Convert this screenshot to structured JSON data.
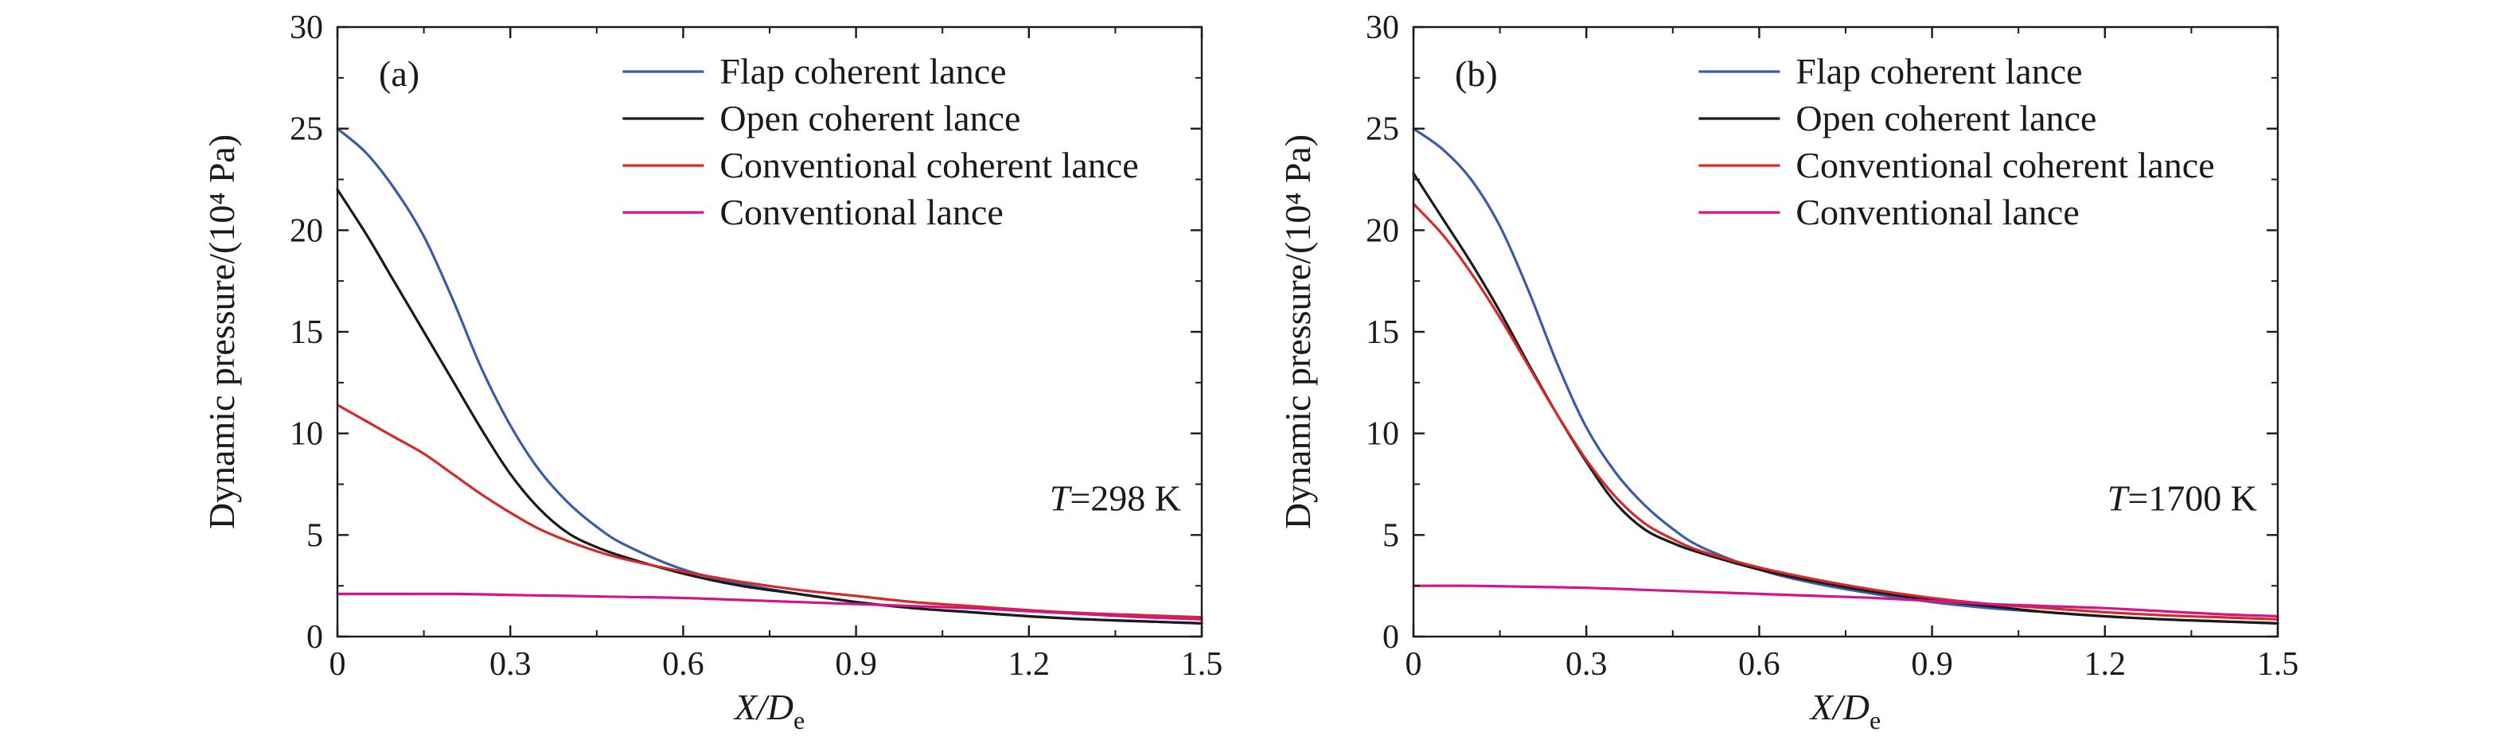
{
  "chart_data": [
    {
      "type": "line",
      "panel_label": "(a)",
      "annotation": {
        "symbol": "T",
        "text": "=298 K"
      },
      "xlabel": {
        "main": "X/D",
        "sub": "e"
      },
      "ylabel": "Dynamic pressure/(10⁴ Pa)",
      "xlim": [
        0,
        1.5
      ],
      "ylim": [
        0,
        30
      ],
      "xticks": [
        "0",
        "0.3",
        "0.6",
        "0.9",
        "1.2",
        "1.5"
      ],
      "yticks": [
        "0",
        "5",
        "10",
        "15",
        "20",
        "25",
        "30"
      ],
      "grid": false,
      "legend_position": "top-right",
      "series": [
        {
          "name": "Flap coherent lance",
          "color": "#3a5ba8",
          "x": [
            0,
            0.05,
            0.1,
            0.15,
            0.2,
            0.25,
            0.3,
            0.35,
            0.4,
            0.45,
            0.5,
            0.6,
            0.7,
            0.8,
            0.9,
            1.0,
            1.1,
            1.2,
            1.3,
            1.4,
            1.5
          ],
          "y": [
            25,
            23.8,
            22,
            19.7,
            16.6,
            13.2,
            10.4,
            8.2,
            6.6,
            5.4,
            4.5,
            3.3,
            2.6,
            2.1,
            1.7,
            1.4,
            1.2,
            1.0,
            0.85,
            0.75,
            0.65
          ]
        },
        {
          "name": "Open coherent lance",
          "color": "#1a1a1a",
          "x": [
            0,
            0.05,
            0.1,
            0.15,
            0.2,
            0.25,
            0.3,
            0.35,
            0.4,
            0.45,
            0.5,
            0.6,
            0.7,
            0.8,
            0.9,
            1.0,
            1.1,
            1.2,
            1.3,
            1.4,
            1.5
          ],
          "y": [
            22,
            19.8,
            17.4,
            15,
            12.6,
            10.2,
            8,
            6.3,
            5.1,
            4.4,
            3.9,
            3.1,
            2.5,
            2.1,
            1.7,
            1.4,
            1.2,
            1.0,
            0.85,
            0.75,
            0.65
          ]
        },
        {
          "name": "Conventional coherent lance",
          "color": "#d42a2a",
          "x": [
            0,
            0.05,
            0.1,
            0.15,
            0.2,
            0.25,
            0.3,
            0.35,
            0.4,
            0.45,
            0.5,
            0.6,
            0.7,
            0.8,
            0.9,
            1.0,
            1.1,
            1.2,
            1.3,
            1.4,
            1.5
          ],
          "y": [
            11.4,
            10.6,
            9.8,
            9,
            8,
            7,
            6.1,
            5.3,
            4.7,
            4.2,
            3.8,
            3.2,
            2.7,
            2.3,
            2.0,
            1.7,
            1.5,
            1.3,
            1.15,
            1.05,
            0.95
          ]
        },
        {
          "name": "Conventional lance",
          "color": "#d4148c",
          "x": [
            0,
            0.1,
            0.2,
            0.3,
            0.4,
            0.5,
            0.6,
            0.7,
            0.8,
            0.9,
            1.0,
            1.1,
            1.2,
            1.3,
            1.4,
            1.5
          ],
          "y": [
            2.1,
            2.1,
            2.1,
            2.05,
            2.0,
            1.95,
            1.9,
            1.8,
            1.7,
            1.6,
            1.5,
            1.4,
            1.25,
            1.1,
            0.95,
            0.85
          ]
        }
      ]
    },
    {
      "type": "line",
      "panel_label": "(b)",
      "annotation": {
        "symbol": "T",
        "text": "=1700 K"
      },
      "xlabel": {
        "main": "X/D",
        "sub": "e"
      },
      "ylabel": "Dynamic pressure/(10⁴ Pa)",
      "xlim": [
        0,
        1.5
      ],
      "ylim": [
        0,
        30
      ],
      "xticks": [
        "0",
        "0.3",
        "0.6",
        "0.9",
        "1.2",
        "1.5"
      ],
      "yticks": [
        "0",
        "5",
        "10",
        "15",
        "20",
        "25",
        "30"
      ],
      "grid": false,
      "legend_position": "top-right",
      "series": [
        {
          "name": "Flap coherent lance",
          "color": "#3a5ba8",
          "x": [
            0,
            0.05,
            0.1,
            0.15,
            0.2,
            0.25,
            0.3,
            0.35,
            0.4,
            0.45,
            0.5,
            0.6,
            0.7,
            0.8,
            0.9,
            1.0,
            1.1,
            1.2,
            1.3,
            1.4,
            1.5
          ],
          "y": [
            25,
            24,
            22.5,
            20.2,
            17,
            13.4,
            10.3,
            8.1,
            6.5,
            5.3,
            4.4,
            3.3,
            2.6,
            2.1,
            1.7,
            1.4,
            1.2,
            1.0,
            0.85,
            0.75,
            0.65
          ]
        },
        {
          "name": "Open coherent lance",
          "color": "#1a1a1a",
          "x": [
            0,
            0.05,
            0.1,
            0.15,
            0.2,
            0.25,
            0.3,
            0.35,
            0.4,
            0.45,
            0.5,
            0.6,
            0.7,
            0.8,
            0.9,
            1.0,
            1.1,
            1.2,
            1.3,
            1.4,
            1.5
          ],
          "y": [
            22.8,
            20.6,
            18.4,
            16,
            13.4,
            10.9,
            8.6,
            6.6,
            5.3,
            4.6,
            4.1,
            3.3,
            2.7,
            2.2,
            1.8,
            1.5,
            1.2,
            1.0,
            0.85,
            0.75,
            0.65
          ]
        },
        {
          "name": "Conventional coherent lance",
          "color": "#d42a2a",
          "x": [
            0,
            0.05,
            0.1,
            0.15,
            0.2,
            0.25,
            0.3,
            0.35,
            0.4,
            0.45,
            0.5,
            0.6,
            0.7,
            0.8,
            0.9,
            1.0,
            1.1,
            1.2,
            1.3,
            1.4,
            1.5
          ],
          "y": [
            21.3,
            19.8,
            17.9,
            15.7,
            13.3,
            10.9,
            8.7,
            6.9,
            5.6,
            4.8,
            4.2,
            3.4,
            2.8,
            2.3,
            1.9,
            1.6,
            1.4,
            1.2,
            1.05,
            0.95,
            0.85
          ]
        },
        {
          "name": "Conventional lance",
          "color": "#d4148c",
          "x": [
            0,
            0.1,
            0.2,
            0.3,
            0.4,
            0.5,
            0.6,
            0.7,
            0.8,
            0.9,
            1.0,
            1.1,
            1.2,
            1.3,
            1.4,
            1.5
          ],
          "y": [
            2.5,
            2.5,
            2.45,
            2.4,
            2.3,
            2.2,
            2.1,
            2.0,
            1.9,
            1.75,
            1.6,
            1.5,
            1.4,
            1.25,
            1.1,
            1.0
          ]
        }
      ]
    }
  ]
}
